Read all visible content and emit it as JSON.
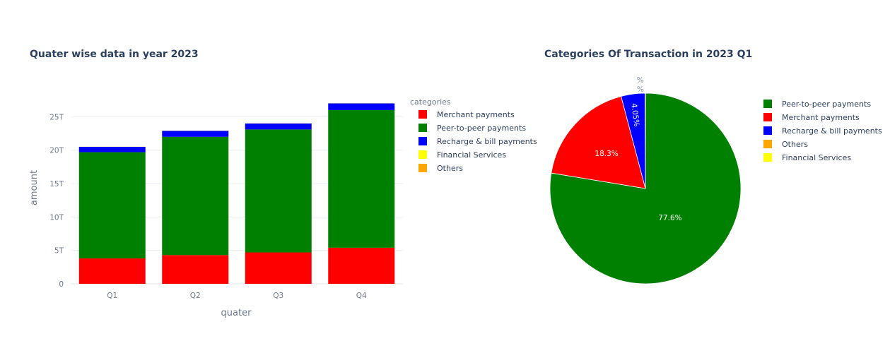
{
  "chart_data": [
    {
      "type": "bar",
      "stacked": true,
      "title": "Quater wise data in year 2023",
      "xlabel": "quater",
      "ylabel": "amount",
      "categories": [
        "Q1",
        "Q2",
        "Q3",
        "Q4"
      ],
      "ylim": [
        0,
        28
      ],
      "yticks": [
        {
          "value": 0,
          "label": "0"
        },
        {
          "value": 5,
          "label": "5T"
        },
        {
          "value": 10,
          "label": "10T"
        },
        {
          "value": 15,
          "label": "15T"
        },
        {
          "value": 20,
          "label": "20T"
        },
        {
          "value": 25,
          "label": "25T"
        }
      ],
      "grid": true,
      "legend_title": "categories",
      "legend_position": "right",
      "series": [
        {
          "name": "Merchant payments",
          "color": "#ff0000",
          "values": [
            3.8,
            4.3,
            4.7,
            5.4
          ]
        },
        {
          "name": "Peer-to-peer payments",
          "color": "#008000",
          "values": [
            15.9,
            17.7,
            18.4,
            20.6
          ]
        },
        {
          "name": "Recharge & bill payments",
          "color": "#0000ff",
          "values": [
            0.8,
            0.9,
            0.9,
            1.0
          ]
        },
        {
          "name": "Financial Services",
          "color": "#ffff00",
          "values": [
            0.01,
            0.01,
            0.01,
            0.01
          ]
        },
        {
          "name": "Others",
          "color": "#ffa500",
          "values": [
            0.01,
            0.01,
            0.01,
            0.01
          ]
        }
      ]
    },
    {
      "type": "pie",
      "title": "Categories Of Transaction in 2023 Q1",
      "legend_position": "right",
      "slices": [
        {
          "name": "Peer-to-peer payments",
          "color": "#008000",
          "value": 77.6,
          "label": "77.6%"
        },
        {
          "name": "Merchant payments",
          "color": "#ff0000",
          "value": 18.3,
          "label": "18.3%"
        },
        {
          "name": "Recharge & bill payments",
          "color": "#0000ff",
          "value": 4.05,
          "label": "4.05%"
        },
        {
          "name": "Others",
          "color": "#ffa500",
          "value": 0.03,
          "label": "%"
        },
        {
          "name": "Financial Services",
          "color": "#ffff00",
          "value": 0.02,
          "label": "%"
        }
      ]
    }
  ]
}
